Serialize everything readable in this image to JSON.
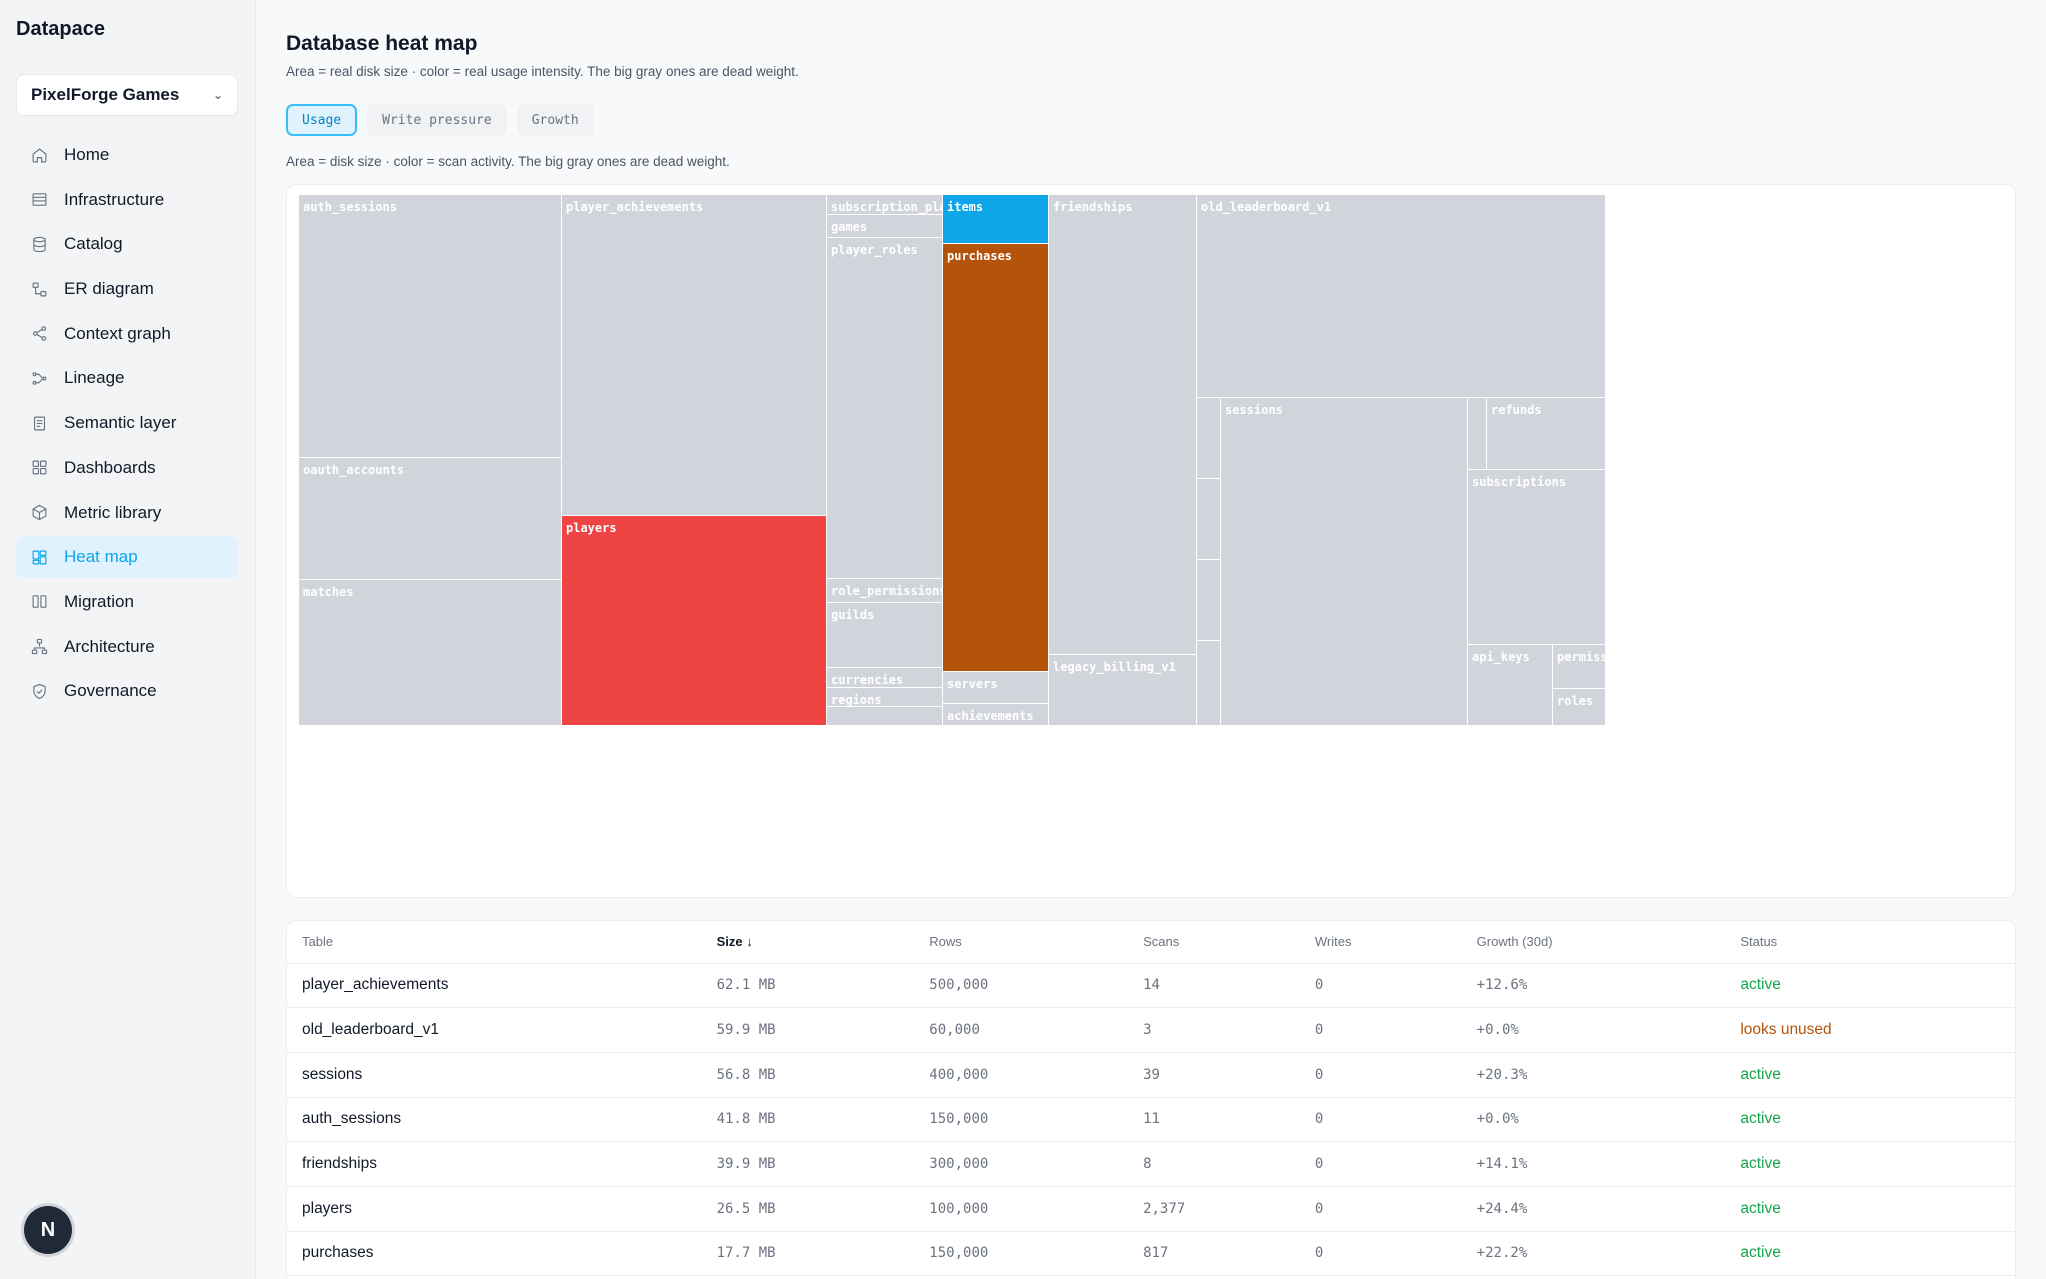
{
  "app": {
    "brand": "Datapace"
  },
  "sidebar": {
    "org": "PixelForge Games",
    "items": [
      {
        "label": "Home",
        "icon": "home-icon"
      },
      {
        "label": "Infrastructure",
        "icon": "server-icon"
      },
      {
        "label": "Catalog",
        "icon": "database-icon"
      },
      {
        "label": "ER diagram",
        "icon": "er-diagram-icon"
      },
      {
        "label": "Context graph",
        "icon": "share-icon"
      },
      {
        "label": "Lineage",
        "icon": "lineage-icon"
      },
      {
        "label": "Semantic layer",
        "icon": "document-icon"
      },
      {
        "label": "Dashboards",
        "icon": "grid-icon"
      },
      {
        "label": "Metric library",
        "icon": "cube-icon"
      },
      {
        "label": "Heat map",
        "icon": "heatmap-icon",
        "active": true
      },
      {
        "label": "Migration",
        "icon": "columns-icon"
      },
      {
        "label": "Architecture",
        "icon": "hierarchy-icon"
      },
      {
        "label": "Governance",
        "icon": "shield-icon"
      }
    ],
    "avatar_initial": "N"
  },
  "header": {
    "title": "Database heat map",
    "subtitle": "Area = real disk size · color = real usage intensity. The big gray ones are dead weight."
  },
  "tabs": [
    {
      "label": "Usage",
      "active": true
    },
    {
      "label": "Write pressure",
      "active": false
    },
    {
      "label": "Growth",
      "active": false
    }
  ],
  "treemap": {
    "caption": "Area = disk size · color = scan activity. The big gray ones are dead weight.",
    "colors": {
      "idle": "#d1d5db",
      "hot": "#ef4444",
      "warm": "#b45309",
      "cool": "#0ea5e9"
    },
    "cells": [
      {
        "label": "auth_sessions",
        "heat": "idle"
      },
      {
        "label": "oauth_accounts",
        "heat": "idle"
      },
      {
        "label": "matches",
        "heat": "idle"
      },
      {
        "label": "player_achievements",
        "heat": "idle"
      },
      {
        "label": "players",
        "heat": "hot"
      },
      {
        "label": "subscription_plans",
        "heat": "idle"
      },
      {
        "label": "games",
        "heat": "idle"
      },
      {
        "label": "player_roles",
        "heat": "idle"
      },
      {
        "label": "role_permissions",
        "heat": "idle"
      },
      {
        "label": "guilds",
        "heat": "idle"
      },
      {
        "label": "currencies",
        "heat": "idle"
      },
      {
        "label": "regions",
        "heat": "idle"
      },
      {
        "label": "",
        "heat": "idle"
      },
      {
        "label": "items",
        "heat": "cool"
      },
      {
        "label": "purchases",
        "heat": "warm"
      },
      {
        "label": "servers",
        "heat": "idle"
      },
      {
        "label": "achievements",
        "heat": "idle"
      },
      {
        "label": "friendships",
        "heat": "idle"
      },
      {
        "label": "legacy_billing_v1",
        "heat": "idle"
      },
      {
        "label": "old_leaderboard_v1",
        "heat": "idle"
      },
      {
        "label": "",
        "heat": "idle"
      },
      {
        "label": "",
        "heat": "idle"
      },
      {
        "label": "",
        "heat": "idle"
      },
      {
        "label": "",
        "heat": "idle"
      },
      {
        "label": "sessions",
        "heat": "idle"
      },
      {
        "label": "",
        "heat": "idle"
      },
      {
        "label": "refunds",
        "heat": "idle"
      },
      {
        "label": "subscriptions",
        "heat": "idle"
      },
      {
        "label": "api_keys",
        "heat": "idle"
      },
      {
        "label": "permissions",
        "heat": "idle"
      },
      {
        "label": "roles",
        "heat": "idle"
      }
    ]
  },
  "table": {
    "columns": [
      "Table",
      "Size ↓",
      "Rows",
      "Scans",
      "Writes",
      "Growth (30d)",
      "Status"
    ],
    "rows": [
      {
        "table": "player_achievements",
        "size": "62.1 MB",
        "rows": "500,000",
        "scans": "14",
        "writes": "0",
        "growth": "+12.6%",
        "status": "active"
      },
      {
        "table": "old_leaderboard_v1",
        "size": "59.9 MB",
        "rows": "60,000",
        "scans": "3",
        "writes": "0",
        "growth": "+0.0%",
        "status": "looks unused"
      },
      {
        "table": "sessions",
        "size": "56.8 MB",
        "rows": "400,000",
        "scans": "39",
        "writes": "0",
        "growth": "+20.3%",
        "status": "active"
      },
      {
        "table": "auth_sessions",
        "size": "41.8 MB",
        "rows": "150,000",
        "scans": "11",
        "writes": "0",
        "growth": "+0.0%",
        "status": "active"
      },
      {
        "table": "friendships",
        "size": "39.9 MB",
        "rows": "300,000",
        "scans": "8",
        "writes": "0",
        "growth": "+14.1%",
        "status": "active"
      },
      {
        "table": "players",
        "size": "26.5 MB",
        "rows": "100,000",
        "scans": "2,377",
        "writes": "0",
        "growth": "+24.4%",
        "status": "active"
      },
      {
        "table": "purchases",
        "size": "17.7 MB",
        "rows": "150,000",
        "scans": "817",
        "writes": "0",
        "growth": "+22.2%",
        "status": "active"
      }
    ]
  }
}
